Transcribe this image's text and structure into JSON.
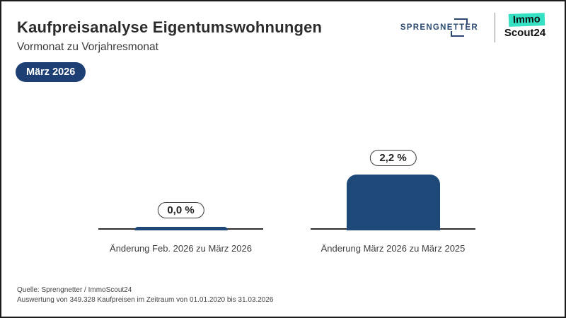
{
  "header": {
    "title": "Kaufpreisanalyse Eigentumswohnungen",
    "subtitle": "Vormonat zu Vorjahresmonat",
    "badge": "März 2026"
  },
  "logos": {
    "sprengnetter": {
      "pre": "SPRENGNE",
      "bracketed": "TT",
      "post": "ER"
    },
    "immoscout": {
      "line1": "Immo",
      "line2": "Scout24"
    }
  },
  "chart_data": {
    "type": "bar",
    "title": "Kaufpreisanalyse Eigentumswohnungen",
    "subtitle": "Vormonat zu Vorjahresmonat",
    "period": "März 2026",
    "categories": [
      "Änderung Feb. 2026 zu März 2026",
      "Änderung März 2026 zu März 2025"
    ],
    "values": [
      0.0,
      2.2
    ],
    "value_labels": [
      "0,0 %",
      "2,2 %"
    ],
    "unit": "%",
    "ylim": [
      0,
      2.4
    ],
    "bar_color": "#1e4878",
    "legend": "none",
    "grid": false
  },
  "footer": {
    "source_line1": "Quelle: Sprengnetter / ImmoScout24",
    "source_line2": "Auswertung von 349.328 Kaufpreisen im Zeitraum von 01.01.2020 bis 31.03.2026"
  },
  "colors": {
    "accent_navy": "#1e3f73",
    "bar_navy": "#1e4878",
    "logo_navy": "#2b4a72",
    "immoscout_teal": "#35e0c3",
    "baseline": "#2e2e2e",
    "frame_border": "#1c1c1c",
    "background": "#ffffff"
  }
}
